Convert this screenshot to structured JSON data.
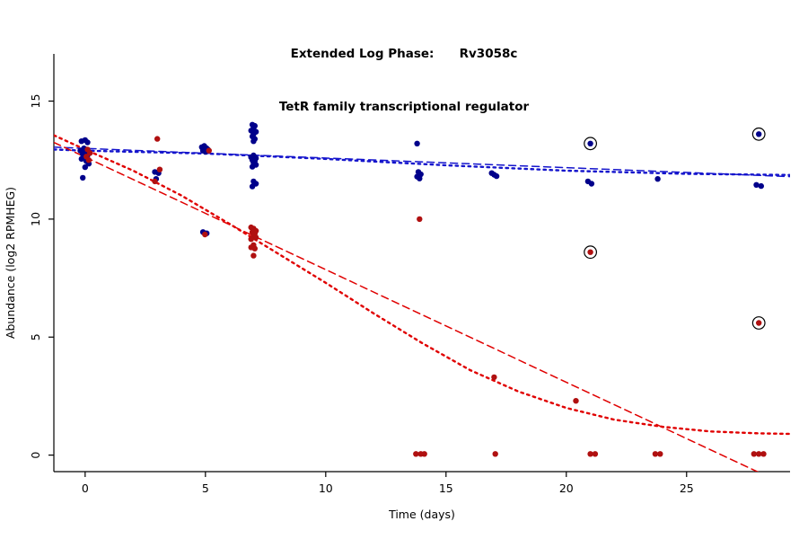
{
  "title": {
    "line1": "Extended Log Phase:      Rv3058c",
    "line2": "TetR family transcriptional regulator"
  },
  "chart_data": {
    "type": "scatter",
    "title": "Extended Log Phase:      Rv3058c",
    "subtitle": "TetR family transcriptional regulator",
    "xlabel": "Time  (days)",
    "ylabel": "Abundance  (log2 RPMHEG)",
    "xlim": [
      -1.3,
      29.3
    ],
    "ylim": [
      -0.7,
      17.0
    ],
    "xticks": [
      0,
      5,
      10,
      15,
      20,
      25
    ],
    "yticks": [
      0,
      5,
      10,
      15
    ],
    "grid": false,
    "legend": "none",
    "point_color_blue": "#00008B",
    "point_color_red": "#B01010",
    "line_color_blue": "#1414CC",
    "line_color_red": "#E00000",
    "series": [
      {
        "name": "blue-series",
        "color": "#00008B",
        "points": [
          [
            -0.15,
            13.3
          ],
          [
            0.0,
            13.35
          ],
          [
            0.1,
            13.25
          ],
          [
            -0.05,
            13.0
          ],
          [
            0.05,
            12.95
          ],
          [
            -0.2,
            12.9
          ],
          [
            0.15,
            12.85
          ],
          [
            0.0,
            12.8
          ],
          [
            -0.1,
            12.75
          ],
          [
            0.1,
            12.7
          ],
          [
            0.0,
            12.6
          ],
          [
            -0.15,
            12.55
          ],
          [
            0.05,
            12.45
          ],
          [
            0.15,
            12.35
          ],
          [
            0.0,
            12.2
          ],
          [
            -0.1,
            11.75
          ],
          [
            2.9,
            12.0
          ],
          [
            3.05,
            11.95
          ],
          [
            2.95,
            11.7
          ],
          [
            4.85,
            13.05
          ],
          [
            4.95,
            13.1
          ],
          [
            5.05,
            13.0
          ],
          [
            5.1,
            12.95
          ],
          [
            4.9,
            12.9
          ],
          [
            5.0,
            12.85
          ],
          [
            4.9,
            9.45
          ],
          [
            5.05,
            9.4
          ],
          [
            6.95,
            14.0
          ],
          [
            7.05,
            13.95
          ],
          [
            7.0,
            13.85
          ],
          [
            6.9,
            13.75
          ],
          [
            7.1,
            13.7
          ],
          [
            7.0,
            13.6
          ],
          [
            6.95,
            13.5
          ],
          [
            7.05,
            13.4
          ],
          [
            7.0,
            13.3
          ],
          [
            7.0,
            12.7
          ],
          [
            6.9,
            12.62
          ],
          [
            7.1,
            12.58
          ],
          [
            6.95,
            12.5
          ],
          [
            7.05,
            12.45
          ],
          [
            7.0,
            12.38
          ],
          [
            7.1,
            12.3
          ],
          [
            6.95,
            12.22
          ],
          [
            7.0,
            11.6
          ],
          [
            7.1,
            11.5
          ],
          [
            6.95,
            11.38
          ],
          [
            13.8,
            13.2
          ],
          [
            13.85,
            12.0
          ],
          [
            13.95,
            11.9
          ],
          [
            13.8,
            11.8
          ],
          [
            13.9,
            11.72
          ],
          [
            16.9,
            11.95
          ],
          [
            17.0,
            11.88
          ],
          [
            17.1,
            11.82
          ],
          [
            20.9,
            11.6
          ],
          [
            21.05,
            11.5
          ],
          [
            21.0,
            13.2
          ],
          [
            23.8,
            11.7
          ],
          [
            27.9,
            11.45
          ],
          [
            28.1,
            11.4
          ],
          [
            28.0,
            13.6
          ]
        ]
      },
      {
        "name": "red-series",
        "color": "#B01010",
        "points": [
          [
            0.1,
            12.95
          ],
          [
            0.2,
            12.8
          ],
          [
            0.05,
            12.65
          ],
          [
            0.15,
            12.5
          ],
          [
            3.0,
            13.4
          ],
          [
            3.1,
            12.1
          ],
          [
            2.9,
            11.6
          ],
          [
            5.15,
            12.9
          ],
          [
            4.98,
            9.35
          ],
          [
            6.9,
            9.65
          ],
          [
            7.0,
            9.6
          ],
          [
            7.1,
            9.5
          ],
          [
            6.95,
            9.45
          ],
          [
            7.05,
            9.38
          ],
          [
            7.0,
            9.3
          ],
          [
            7.1,
            9.22
          ],
          [
            6.9,
            9.15
          ],
          [
            7.0,
            8.9
          ],
          [
            6.9,
            8.8
          ],
          [
            7.05,
            8.75
          ],
          [
            7.0,
            8.45
          ],
          [
            13.9,
            10.0
          ],
          [
            13.75,
            0.05
          ],
          [
            13.95,
            0.05
          ],
          [
            14.1,
            0.05
          ],
          [
            17.0,
            3.3
          ],
          [
            17.05,
            0.05
          ],
          [
            20.4,
            2.3
          ],
          [
            21.0,
            8.6
          ],
          [
            21.0,
            0.05
          ],
          [
            21.2,
            0.05
          ],
          [
            23.7,
            0.05
          ],
          [
            23.9,
            0.05
          ],
          [
            27.8,
            0.05
          ],
          [
            28.0,
            0.05
          ],
          [
            28.2,
            0.05
          ],
          [
            28.0,
            5.6
          ]
        ]
      }
    ],
    "highlighted_points": [
      {
        "x": 21.0,
        "y": 13.2,
        "series": "blue-series"
      },
      {
        "x": 28.0,
        "y": 13.6,
        "series": "blue-series"
      },
      {
        "x": 21.0,
        "y": 8.6,
        "series": "red-series"
      },
      {
        "x": 28.0,
        "y": 5.6,
        "series": "red-series"
      }
    ],
    "trend_lines": [
      {
        "name": "blue-linear-fit",
        "color": "#1414CC",
        "style": "dashed",
        "points": [
          [
            -1.3,
            13.05
          ],
          [
            29.3,
            11.8
          ]
        ]
      },
      {
        "name": "blue-smooth-fit",
        "color": "#1414CC",
        "style": "dotted",
        "points": [
          [
            -1.3,
            12.95
          ],
          [
            0,
            12.9
          ],
          [
            5,
            12.78
          ],
          [
            10,
            12.55
          ],
          [
            15,
            12.28
          ],
          [
            20,
            12.05
          ],
          [
            25,
            11.92
          ],
          [
            29.3,
            11.87
          ]
        ]
      },
      {
        "name": "red-linear-fit",
        "color": "#E00000",
        "style": "dashed",
        "points": [
          [
            -1.3,
            13.25
          ],
          [
            29.3,
            -1.35
          ]
        ]
      },
      {
        "name": "red-smooth-fit",
        "color": "#E00000",
        "style": "dotted",
        "points": [
          [
            -1.3,
            13.55
          ],
          [
            0,
            12.95
          ],
          [
            2,
            12.05
          ],
          [
            4,
            11.0
          ],
          [
            6,
            9.8
          ],
          [
            8,
            8.55
          ],
          [
            10,
            7.3
          ],
          [
            12,
            6.0
          ],
          [
            14,
            4.75
          ],
          [
            16,
            3.6
          ],
          [
            18,
            2.7
          ],
          [
            20,
            2.0
          ],
          [
            22,
            1.5
          ],
          [
            24,
            1.2
          ],
          [
            26,
            1.0
          ],
          [
            28,
            0.92
          ],
          [
            29.3,
            0.9
          ]
        ]
      }
    ]
  }
}
